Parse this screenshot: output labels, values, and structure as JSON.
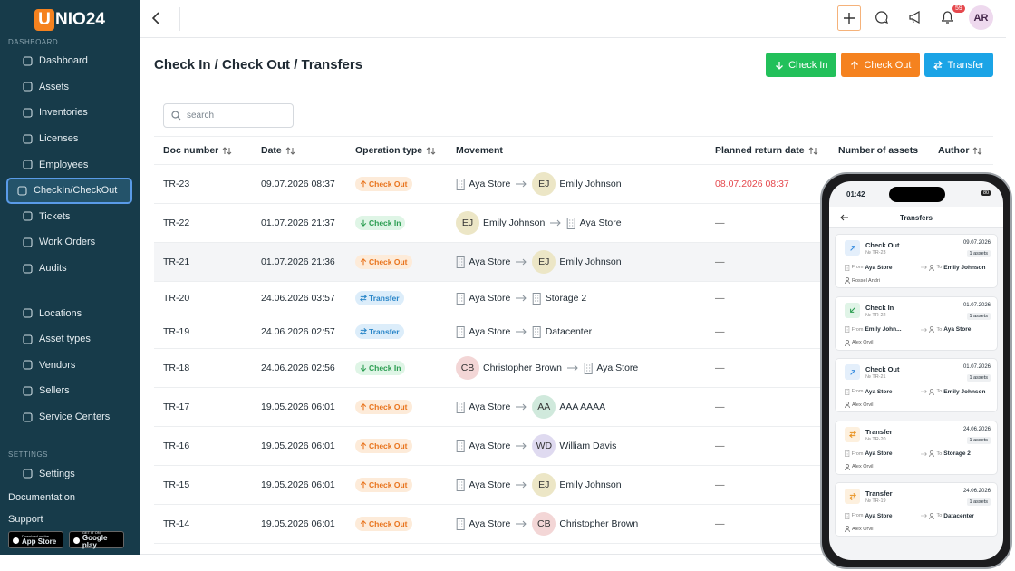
{
  "sidebar": {
    "logo_mark": "U",
    "logo_text": "NIO24",
    "sections": [
      {
        "heading": "DASHBOARD",
        "items": [
          {
            "label": "Dashboard"
          },
          {
            "label": "Assets"
          },
          {
            "label": "Inventories"
          },
          {
            "label": "Licenses"
          },
          {
            "label": "Employees"
          },
          {
            "label": "CheckIn/CheckOut",
            "active": true
          },
          {
            "label": "Tickets"
          },
          {
            "label": "Work Orders"
          },
          {
            "label": "Audits"
          }
        ]
      },
      {
        "items": [
          {
            "label": "Locations"
          },
          {
            "label": "Asset types"
          },
          {
            "label": "Vendors"
          },
          {
            "label": "Sellers"
          },
          {
            "label": "Service Centers"
          }
        ]
      },
      {
        "heading": "SETTINGS",
        "items": [
          {
            "label": "Settings"
          }
        ]
      }
    ],
    "links": [
      "Documentation",
      "Support"
    ],
    "stores": [
      {
        "small": "Download on the",
        "label": "App Store"
      },
      {
        "small": "GET IT ON",
        "label": "Google play"
      }
    ]
  },
  "header": {
    "notifications": 59,
    "avatar": "AR"
  },
  "page": {
    "title": "Check In / Check Out / Transfers",
    "search_placeholder": "search",
    "actions": [
      {
        "label": "Check In",
        "color": "#22c05a",
        "icon": "down"
      },
      {
        "label": "Check Out",
        "color": "#f5821f",
        "icon": "up"
      },
      {
        "label": "Transfer",
        "color": "#1ba4e6",
        "icon": "swap"
      }
    ]
  },
  "table": {
    "columns": [
      {
        "label": "Doc number",
        "sortable": true
      },
      {
        "label": "Date",
        "sortable": true
      },
      {
        "label": "Operation type",
        "sortable": true
      },
      {
        "label": "Movement"
      },
      {
        "label": "Planned return date",
        "sortable": true
      },
      {
        "label": "Number of assets"
      },
      {
        "label": "Author",
        "sortable": true
      }
    ],
    "rows": [
      {
        "doc": "TR-23",
        "date": "09.07.2026 08:37",
        "operation": {
          "label": "Check Out",
          "icon": "up",
          "color": "#e8731c",
          "background": "#fdebd9"
        },
        "from": {
          "name": "Aya Store"
        },
        "to": {
          "name": "Emily Johnson",
          "initials": "EJ",
          "color": "#ece6c6"
        },
        "return": "08.07.2026 08:37",
        "return_color": "#e5484d"
      },
      {
        "doc": "TR-22",
        "date": "01.07.2026 21:37",
        "operation": {
          "label": "Check In",
          "icon": "down",
          "color": "#2a9d50",
          "background": "#dff5e6"
        },
        "from": {
          "name": "Emily Johnson",
          "initials": "EJ",
          "color": "#ece6c6"
        },
        "to": {
          "name": "Aya Store"
        },
        "return": "—"
      },
      {
        "doc": "TR-21",
        "date": "01.07.2026 21:36",
        "operation": {
          "label": "Check Out",
          "icon": "up",
          "color": "#e8731c",
          "background": "#fdebd9"
        },
        "from": {
          "name": "Aya Store"
        },
        "to": {
          "name": "Emily Johnson",
          "initials": "EJ",
          "color": "#ece6c6"
        },
        "return": "—"
      },
      {
        "doc": "TR-20",
        "date": "24.06.2026 03:57",
        "operation": {
          "label": "Transfer",
          "icon": "swap",
          "color": "#2a86c8",
          "background": "#dcedfa"
        },
        "from": {
          "name": "Aya Store"
        },
        "to": {
          "name": "Storage 2"
        },
        "return": "—"
      },
      {
        "doc": "TR-19",
        "date": "24.06.2026 02:57",
        "operation": {
          "label": "Transfer",
          "icon": "swap",
          "color": "#2a86c8",
          "background": "#dcedfa"
        },
        "from": {
          "name": "Aya Store"
        },
        "to": {
          "name": "Datacenter"
        },
        "return": "—"
      },
      {
        "doc": "TR-18",
        "date": "24.06.2026 02:56",
        "operation": {
          "label": "Check In",
          "icon": "down",
          "color": "#2a9d50",
          "background": "#dff5e6"
        },
        "from": {
          "name": "Christopher Brown",
          "initials": "CB",
          "color": "#f3d6d6"
        },
        "to": {
          "name": "Aya Store"
        },
        "return": "—"
      },
      {
        "doc": "TR-17",
        "date": "19.05.2026 06:01",
        "operation": {
          "label": "Check Out",
          "icon": "up",
          "color": "#e8731c",
          "background": "#fdebd9"
        },
        "from": {
          "name": "Aya Store"
        },
        "to": {
          "name": "AAA AAAA",
          "initials": "AA",
          "color": "#d0e9dc"
        },
        "return": "—"
      },
      {
        "doc": "TR-16",
        "date": "19.05.2026 06:01",
        "operation": {
          "label": "Check Out",
          "icon": "up",
          "color": "#e8731c",
          "background": "#fdebd9"
        },
        "from": {
          "name": "Aya Store"
        },
        "to": {
          "name": "William Davis",
          "initials": "WD",
          "color": "#dfdaf0"
        },
        "return": "—"
      },
      {
        "doc": "TR-15",
        "date": "19.05.2026 06:01",
        "operation": {
          "label": "Check Out",
          "icon": "up",
          "color": "#e8731c",
          "background": "#fdebd9"
        },
        "from": {
          "name": "Aya Store"
        },
        "to": {
          "name": "Emily Johnson",
          "initials": "EJ",
          "color": "#ece6c6"
        },
        "return": "—"
      },
      {
        "doc": "TR-14",
        "date": "19.05.2026 06:01",
        "operation": {
          "label": "Check Out",
          "icon": "up",
          "color": "#e8731c",
          "background": "#fdebd9"
        },
        "from": {
          "name": "Aya Store"
        },
        "to": {
          "name": "Christopher Brown",
          "initials": "CB",
          "color": "#f3d6d6"
        },
        "return": "—"
      }
    ]
  },
  "phone": {
    "time": "01:42",
    "battery": 80,
    "title": "Transfers",
    "from_label": "From",
    "to_label": "To",
    "cards": [
      {
        "title": "Check Out",
        "number": "№ TR-23",
        "date": "09.07.2026",
        "assets": "1 assets",
        "from": "Aya Store",
        "to": "Emily Johnson",
        "author": "Rossel Andri",
        "icon": "up",
        "color": "#3a8ee0",
        "background": "#e4effb"
      },
      {
        "title": "Check In",
        "number": "№ TR-22",
        "date": "01.07.2026",
        "assets": "1 assets",
        "from": "Emily John...",
        "to": "Aya Store",
        "author": "Alex Orvil",
        "icon": "down",
        "color": "#2a9d50",
        "background": "#e0f4e7"
      },
      {
        "title": "Check Out",
        "number": "№ TR-21",
        "date": "01.07.2026",
        "assets": "1 assets",
        "from": "Aya Store",
        "to": "Emily Johnson",
        "author": "Alex Orvil",
        "icon": "up",
        "color": "#3a8ee0",
        "background": "#e4effb"
      },
      {
        "title": "Transfer",
        "number": "№ TR-20",
        "date": "24.06.2026",
        "assets": "1 assets",
        "from": "Aya Store",
        "to": "Storage 2",
        "author": "Alex Orvil",
        "icon": "swap",
        "color": "#e8901c",
        "background": "#fdf0de"
      },
      {
        "title": "Transfer",
        "number": "№ TR-19",
        "date": "24.06.2026",
        "assets": "1 assets",
        "from": "Aya Store",
        "to": "Datacenter",
        "author": "Alex Orvil",
        "icon": "swap",
        "color": "#e8901c",
        "background": "#fdf0de"
      }
    ]
  }
}
